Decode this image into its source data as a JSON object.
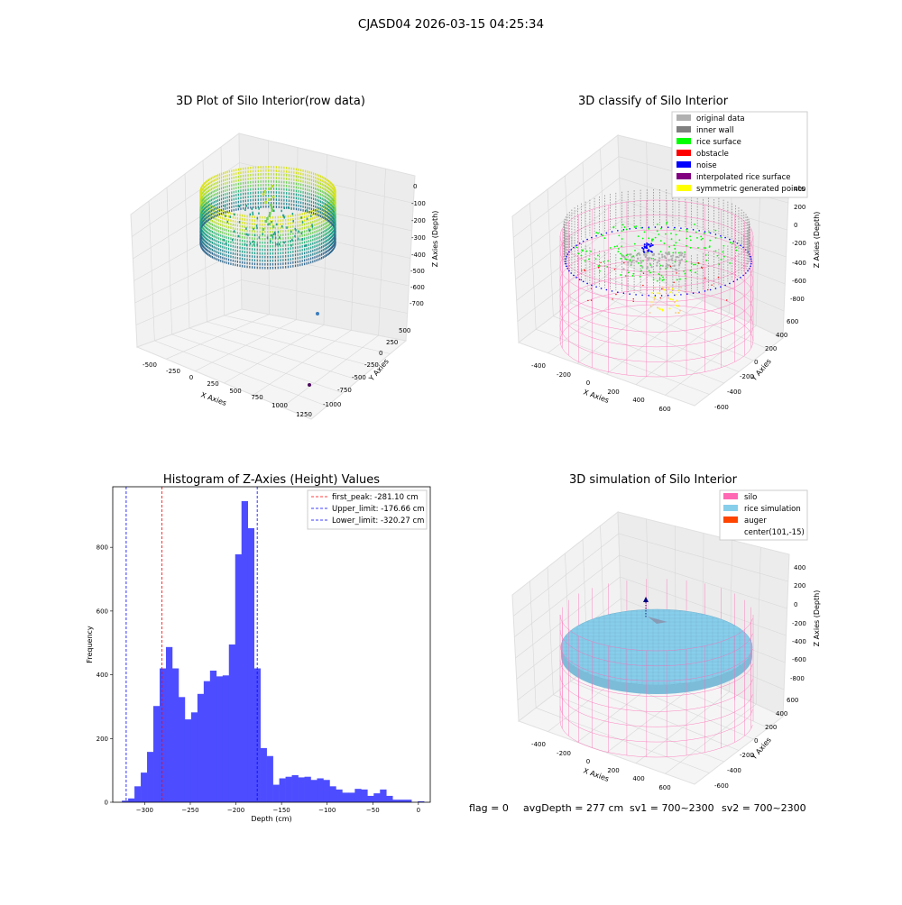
{
  "figure": {
    "suptitle": "CJASD04 2026-03-15 04:25:34",
    "footer": {
      "flag": "flag = 0",
      "avg_depth": "avgDepth = 277 cm",
      "sv1": "sv1 = 700~2300",
      "sv2": "sv2 = 700~2300"
    }
  },
  "colors": {
    "original_data": "#b0b0b0",
    "inner_wall": "#808080",
    "rice_surface": "#00ff00",
    "obstacle": "#ff0000",
    "noise": "#0000ff",
    "interpolated": "#800080",
    "symmetric": "#ffff00",
    "silo": "#ff69b4",
    "rice_simulation": "#87ceeb",
    "auger": "#ff4500",
    "hist_bar": "#4d4dff",
    "peak_line": "#ff0000",
    "limit_line": "#0000ff"
  },
  "chart_data": [
    {
      "type": "scatter3d",
      "title": "3D Plot of Silo Interior(row data)",
      "xlabel": "X Axies",
      "ylabel": "Y Axies",
      "zlabel": "Z Axies (Depth)",
      "x_ticks": [
        "-500",
        "-250",
        "0",
        "250",
        "500",
        "750",
        "1000",
        "1250"
      ],
      "y_ticks": [
        "500",
        "250",
        "0",
        "-250",
        "-500",
        "-750",
        "-1000"
      ],
      "z_ticks": [
        "0",
        "-100",
        "-200",
        "-300",
        "-400",
        "-500",
        "-600",
        "-700"
      ]
    },
    {
      "type": "scatter3d",
      "title": "3D classify of Silo Interior",
      "xlabel": "X Axies",
      "ylabel": "Y Axies",
      "zlabel": "Z Axies (Depth)",
      "x_ticks": [
        "-400",
        "-200",
        "0",
        "200",
        "400",
        "600"
      ],
      "y_ticks": [
        "600",
        "400",
        "200",
        "0",
        "-200",
        "-400",
        "-600"
      ],
      "z_ticks": [
        "400",
        "200",
        "0",
        "-200",
        "-400",
        "-600",
        "-800"
      ],
      "legend": {
        "position": "top-right",
        "entries": [
          "original data",
          "inner wall",
          "rice surface",
          "obstacle",
          "noise",
          "interpolated rice surface",
          "symmetric generated points"
        ]
      }
    },
    {
      "type": "bar",
      "title": "Histogram of Z-Axies (Height) Values",
      "xlabel": "Depth (cm)",
      "ylabel": "Frequency",
      "xlim": [
        -335,
        13
      ],
      "ylim": [
        0,
        990
      ],
      "x_ticks": [
        -300,
        -250,
        -200,
        -150,
        -100,
        -50,
        0
      ],
      "y_ticks": [
        0,
        200,
        400,
        600,
        800
      ],
      "bin_width": 6.9,
      "bins_start": [
        -325,
        -318.1,
        -311.2,
        -304.3,
        -297.4,
        -290.5,
        -283.6,
        -276.7,
        -269.8,
        -262.9,
        -256,
        -249.1,
        -242.2,
        -235.3,
        -228.4,
        -221.5,
        -214.6,
        -207.7,
        -200.8,
        -193.9,
        -187,
        -180.1,
        -173.2,
        -166.3,
        -159.4,
        -152.5,
        -145.6,
        -138.7,
        -131.8,
        -124.9,
        -118,
        -111.1,
        -104.2,
        -97.3,
        -90.4,
        -83.5,
        -76.6,
        -69.7,
        -62.8,
        -55.9,
        -49,
        -42.1,
        -35.2,
        -28.3,
        -21.4,
        -14.5,
        -7.6,
        -0.7
      ],
      "values": [
        5,
        12,
        50,
        93,
        158,
        302,
        420,
        487,
        420,
        330,
        260,
        282,
        340,
        380,
        413,
        395,
        398,
        495,
        778,
        945,
        860,
        420,
        170,
        145,
        55,
        75,
        80,
        85,
        78,
        80,
        70,
        75,
        70,
        50,
        40,
        30,
        30,
        42,
        40,
        20,
        28,
        40,
        20,
        8,
        8,
        8,
        0,
        3
      ],
      "vlines": [
        {
          "x": -281.1,
          "color": "#ff0000",
          "label": "first_peak: -281.10 cm"
        },
        {
          "x": -176.66,
          "color": "#0000ff",
          "label": "Upper_limit: -176.66 cm"
        },
        {
          "x": -320.27,
          "color": "#0000ff",
          "label": "Lower_limit: -320.27 cm"
        }
      ],
      "legend": {
        "position": "top-right"
      }
    },
    {
      "type": "surface3d",
      "title": "3D simulation of Silo Interior",
      "xlabel": "X Axies",
      "ylabel": "Y Axies",
      "zlabel": "Z Axies (Depth)",
      "x_ticks": [
        "-400",
        "-200",
        "0",
        "200",
        "400",
        "600"
      ],
      "y_ticks": [
        "600",
        "400",
        "200",
        "0",
        "-200",
        "-400",
        "-600"
      ],
      "z_ticks": [
        "400",
        "200",
        "0",
        "-200",
        "-400",
        "-600",
        "-800"
      ],
      "legend": {
        "position": "top-right",
        "entries": [
          "silo",
          "rice simulation",
          "auger",
          "center(101,-15)"
        ]
      }
    }
  ]
}
